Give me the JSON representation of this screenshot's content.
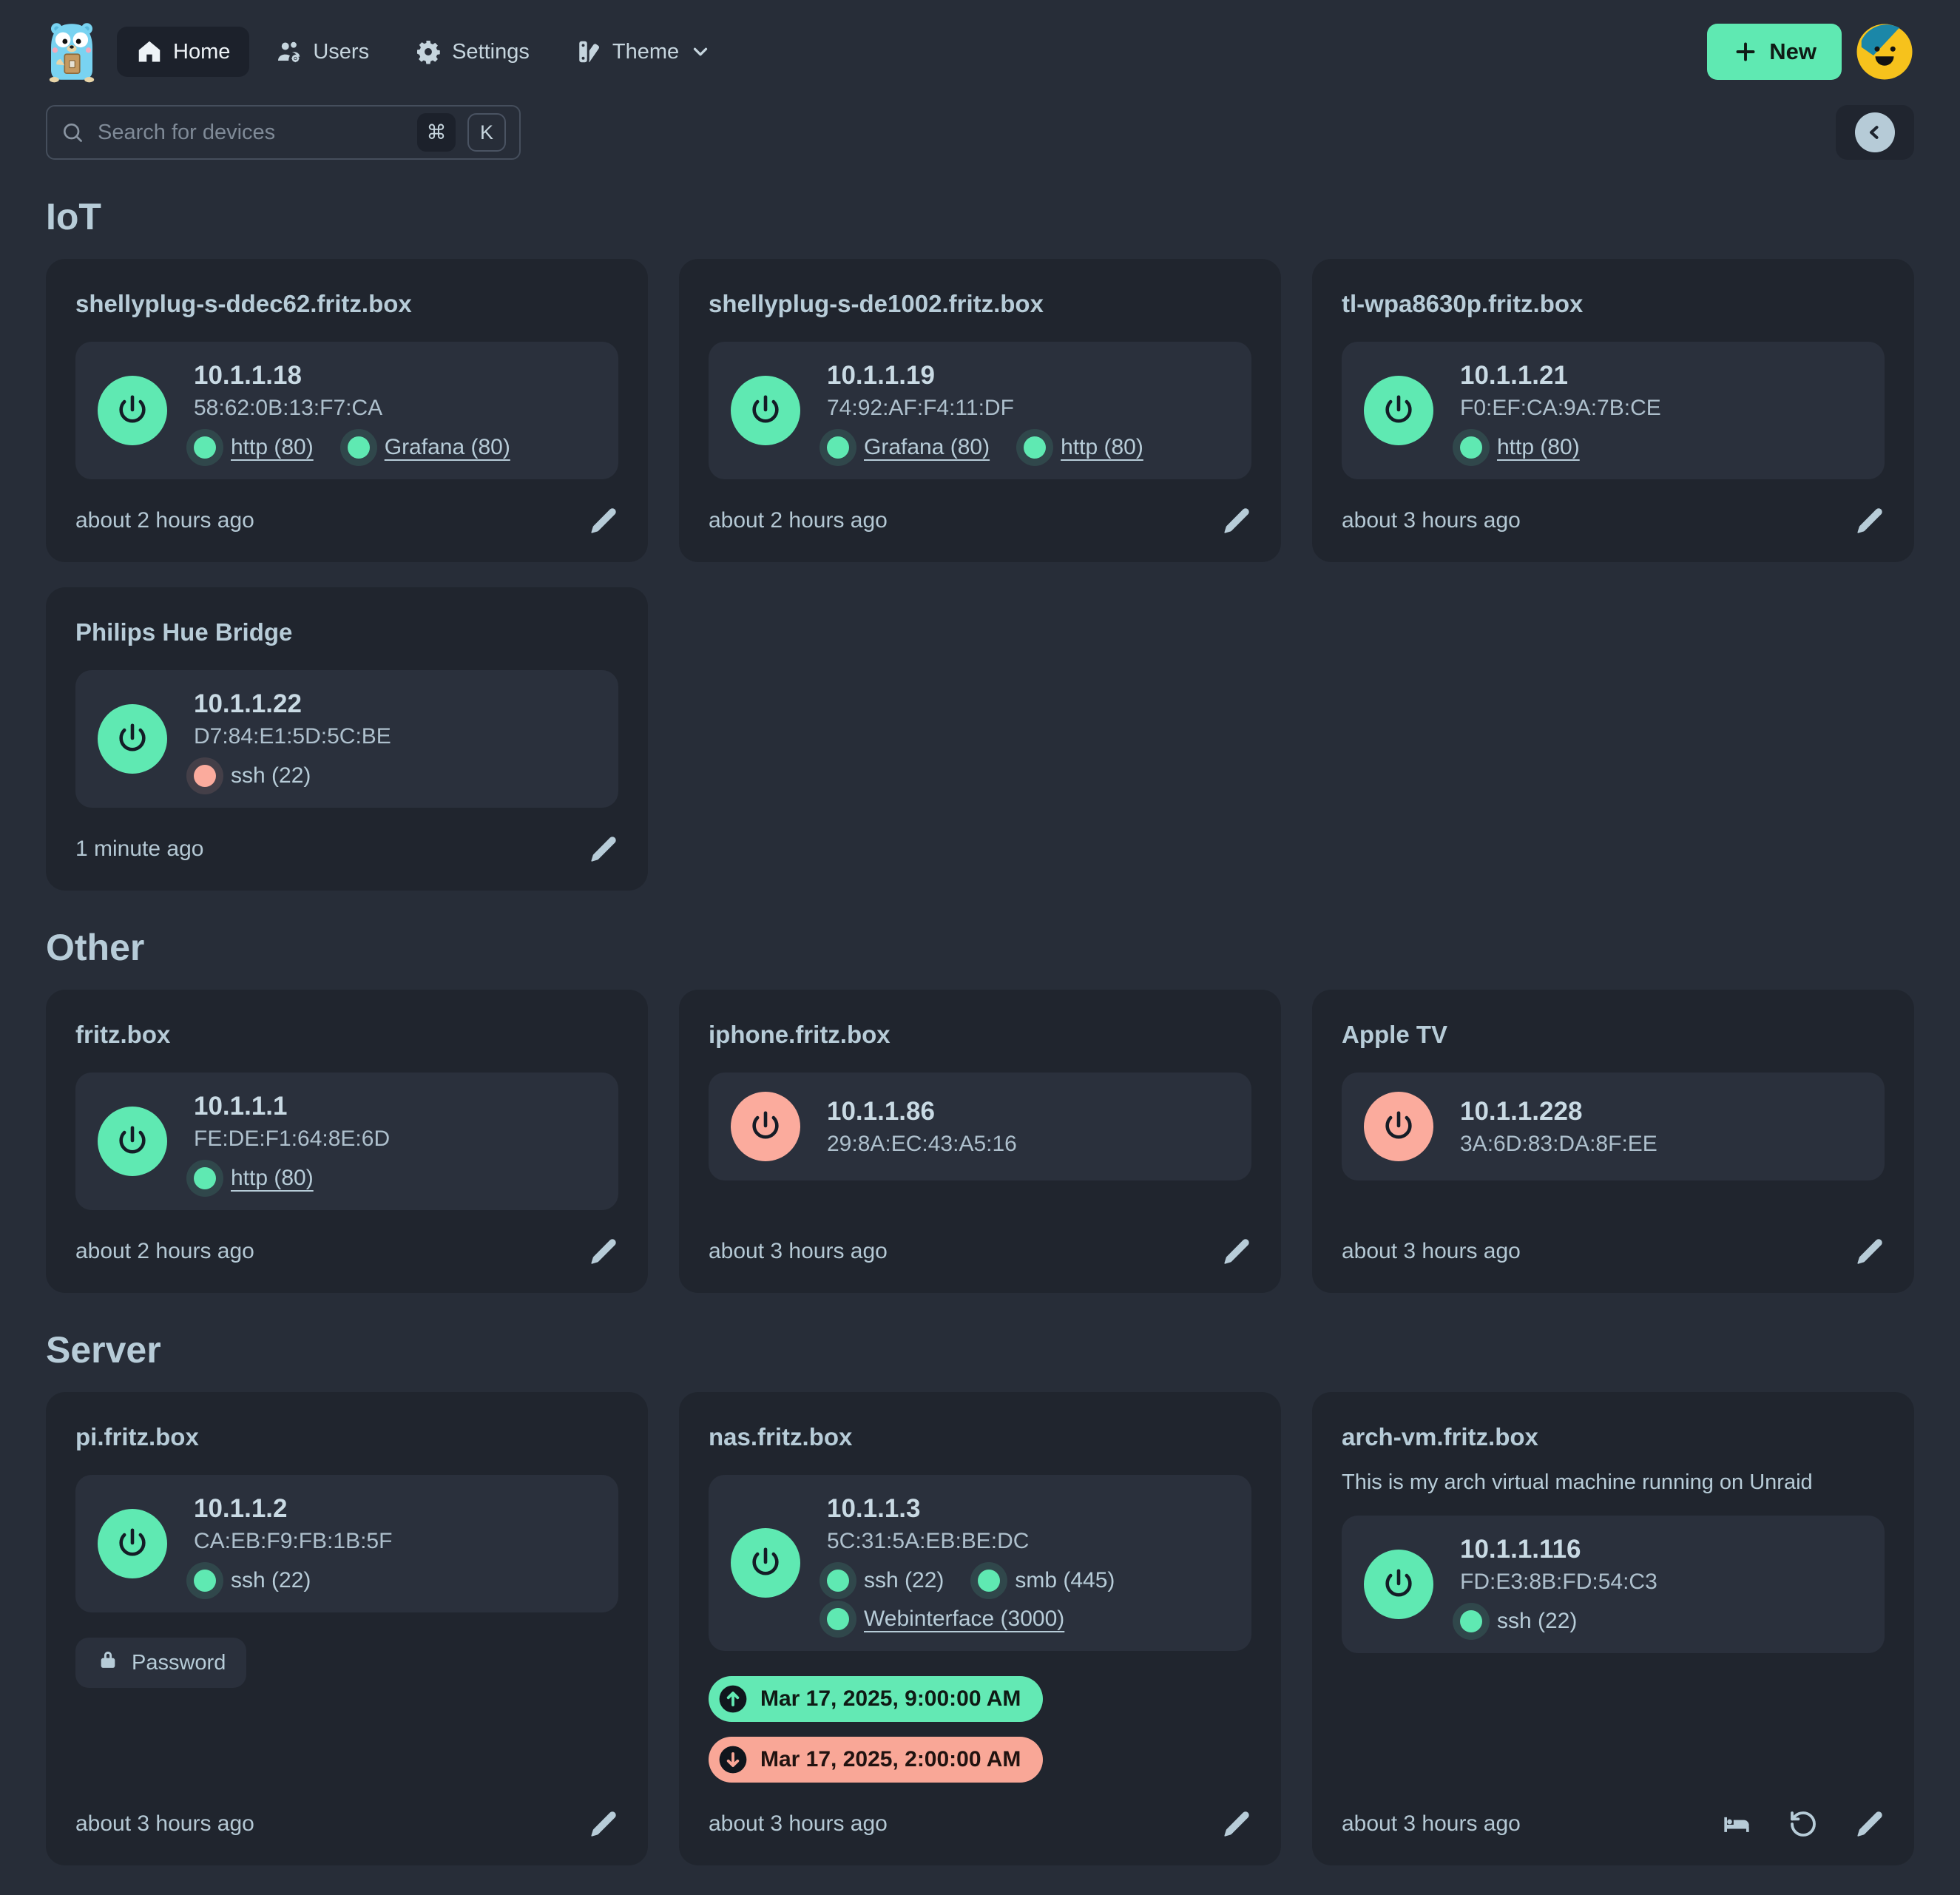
{
  "nav": {
    "logo_alt": "gopher-logo",
    "items": [
      {
        "label": "Home",
        "active": true
      },
      {
        "label": "Users",
        "active": false
      },
      {
        "label": "Settings",
        "active": false
      },
      {
        "label": "Theme",
        "active": false,
        "dropdown": true
      }
    ],
    "new_button_label": "New"
  },
  "search": {
    "placeholder": "Search for devices",
    "shortcut_keys": [
      "⌘",
      "K"
    ]
  },
  "colors": {
    "page_bg": "#272d38",
    "card_bg": "#20252e",
    "panel_bg": "#2a303c",
    "accent_green": "#5fe9b2",
    "accent_salmon": "#fbab9d",
    "text": "#b7ccd8"
  },
  "sections": [
    {
      "title": "IoT",
      "devices": [
        {
          "name": "shellyplug-s-ddec62.fritz.box",
          "ip": "10.1.1.18",
          "mac": "58:62:0B:13:F7:CA",
          "online": true,
          "ports": [
            {
              "label": "http (80)",
              "link": true,
              "status": "up"
            },
            {
              "label": "Grafana (80)",
              "link": true,
              "status": "up"
            }
          ],
          "updated": "about 2 hours ago",
          "actions": [
            "edit"
          ]
        },
        {
          "name": "shellyplug-s-de1002.fritz.box",
          "ip": "10.1.1.19",
          "mac": "74:92:AF:F4:11:DF",
          "online": true,
          "ports": [
            {
              "label": "Grafana (80)",
              "link": true,
              "status": "up"
            },
            {
              "label": "http (80)",
              "link": true,
              "status": "up"
            }
          ],
          "updated": "about 2 hours ago",
          "actions": [
            "edit"
          ]
        },
        {
          "name": "tl-wpa8630p.fritz.box",
          "ip": "10.1.1.21",
          "mac": "F0:EF:CA:9A:7B:CE",
          "online": true,
          "ports": [
            {
              "label": "http (80)",
              "link": true,
              "status": "up"
            }
          ],
          "updated": "about 3 hours ago",
          "actions": [
            "edit"
          ]
        },
        {
          "name": "Philips Hue Bridge",
          "ip": "10.1.1.22",
          "mac": "D7:84:E1:5D:5C:BE",
          "online": true,
          "ports": [
            {
              "label": "ssh (22)",
              "link": false,
              "status": "down"
            }
          ],
          "updated": "1 minute ago",
          "actions": [
            "edit"
          ]
        }
      ]
    },
    {
      "title": "Other",
      "devices": [
        {
          "name": "fritz.box",
          "ip": "10.1.1.1",
          "mac": "FE:DE:F1:64:8E:6D",
          "online": true,
          "ports": [
            {
              "label": "http (80)",
              "link": true,
              "status": "up"
            }
          ],
          "updated": "about 2 hours ago",
          "actions": [
            "edit"
          ]
        },
        {
          "name": "iphone.fritz.box",
          "ip": "10.1.1.86",
          "mac": "29:8A:EC:43:A5:16",
          "online": false,
          "ports": [],
          "updated": "about 3 hours ago",
          "actions": [
            "edit"
          ]
        },
        {
          "name": "Apple TV",
          "ip": "10.1.1.228",
          "mac": "3A:6D:83:DA:8F:EE",
          "online": false,
          "ports": [],
          "updated": "about 3 hours ago",
          "actions": [
            "edit"
          ]
        }
      ]
    },
    {
      "title": "Server",
      "devices": [
        {
          "name": "pi.fritz.box",
          "ip": "10.1.1.2",
          "mac": "CA:EB:F9:FB:1B:5F",
          "online": true,
          "ports": [
            {
              "label": "ssh (22)",
              "link": false,
              "status": "up"
            }
          ],
          "tags": [
            {
              "icon": "lock",
              "label": "Password"
            }
          ],
          "updated": "about 3 hours ago",
          "actions": [
            "edit"
          ]
        },
        {
          "name": "nas.fritz.box",
          "ip": "10.1.1.3",
          "mac": "5C:31:5A:EB:BE:DC",
          "online": true,
          "ports": [
            {
              "label": "ssh (22)",
              "link": false,
              "status": "up"
            },
            {
              "label": "smb (445)",
              "link": false,
              "status": "up"
            },
            {
              "label": "Webinterface (3000)",
              "link": true,
              "status": "up"
            }
          ],
          "schedules": [
            {
              "direction": "up",
              "text": "Mar 17, 2025, 9:00:00 AM"
            },
            {
              "direction": "down",
              "text": "Mar 17, 2025, 2:00:00 AM"
            }
          ],
          "updated": "about 3 hours ago",
          "actions": [
            "edit"
          ]
        },
        {
          "name": "arch-vm.fritz.box",
          "description": "This is my arch virtual machine running on Unraid",
          "ip": "10.1.1.116",
          "mac": "FD:E3:8B:FD:54:C3",
          "online": true,
          "ports": [
            {
              "label": "ssh (22)",
              "link": false,
              "status": "up"
            }
          ],
          "updated": "about 3 hours ago",
          "actions": [
            "bed",
            "restart",
            "edit"
          ]
        }
      ]
    }
  ]
}
